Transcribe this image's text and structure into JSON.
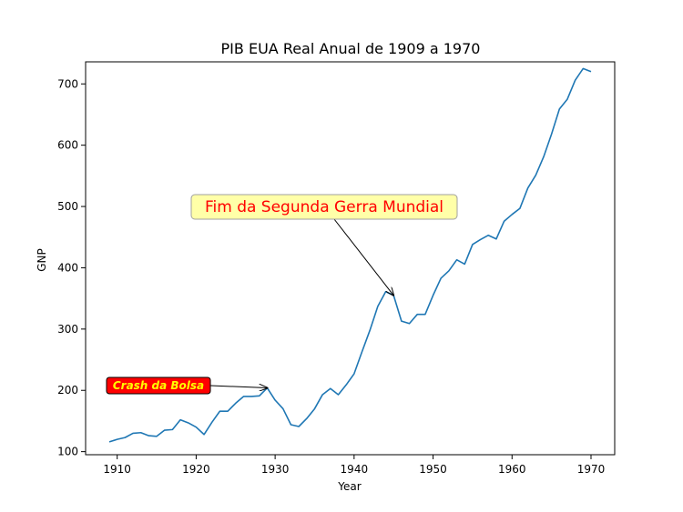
{
  "chart_data": {
    "type": "line",
    "title": "PIB EUA Real Anual de 1909 a 1970",
    "xlabel": "Year",
    "ylabel": "GNP",
    "xlim": [
      1906,
      1973
    ],
    "ylim": [
      95,
      736
    ],
    "xticks": [
      1910,
      1920,
      1930,
      1940,
      1950,
      1960,
      1970
    ],
    "yticks": [
      100,
      200,
      300,
      400,
      500,
      600,
      700
    ],
    "grid": false,
    "line_color": "#1f77b4",
    "series": [
      {
        "x": [
          1909,
          1910,
          1911,
          1912,
          1913,
          1914,
          1915,
          1916,
          1917,
          1918,
          1919,
          1920,
          1921,
          1922,
          1923,
          1924,
          1925,
          1926,
          1927,
          1928,
          1929,
          1930,
          1931,
          1932,
          1933,
          1934,
          1935,
          1936,
          1937,
          1938,
          1939,
          1940,
          1941,
          1942,
          1943,
          1944,
          1945,
          1946,
          1947,
          1948,
          1949,
          1950,
          1951,
          1952,
          1953,
          1954,
          1955,
          1956,
          1957,
          1958,
          1959,
          1960,
          1961,
          1962,
          1963,
          1964,
          1965,
          1966,
          1967,
          1968,
          1969,
          1970
        ],
        "y": [
          116,
          120,
          123,
          130,
          131,
          126,
          125,
          135,
          136,
          152,
          147,
          140,
          128,
          148,
          166,
          166,
          179,
          190,
          190,
          191,
          204,
          184,
          170,
          144,
          141,
          154,
          170,
          193,
          203,
          193,
          209,
          227,
          263,
          298,
          337,
          361,
          355,
          313,
          309,
          324,
          324,
          355,
          383,
          395,
          413,
          406,
          438,
          446,
          453,
          447,
          476,
          487,
          497,
          530,
          551,
          581,
          618,
          659,
          675,
          706,
          725,
          720
        ]
      }
    ],
    "annotations": [
      {
        "text": "Fim da Segunda Gerra Mundial",
        "xy": [
          1945,
          355
        ],
        "text_color": "#ff0000",
        "box_color": "#ffffa8",
        "box_edge": "#a0a0a0"
      },
      {
        "text": "Crash da Bolsa",
        "xy": [
          1929,
          204
        ],
        "text_color": "#ffff00",
        "box_color": "#ff0000",
        "box_edge": "#000000"
      }
    ]
  }
}
